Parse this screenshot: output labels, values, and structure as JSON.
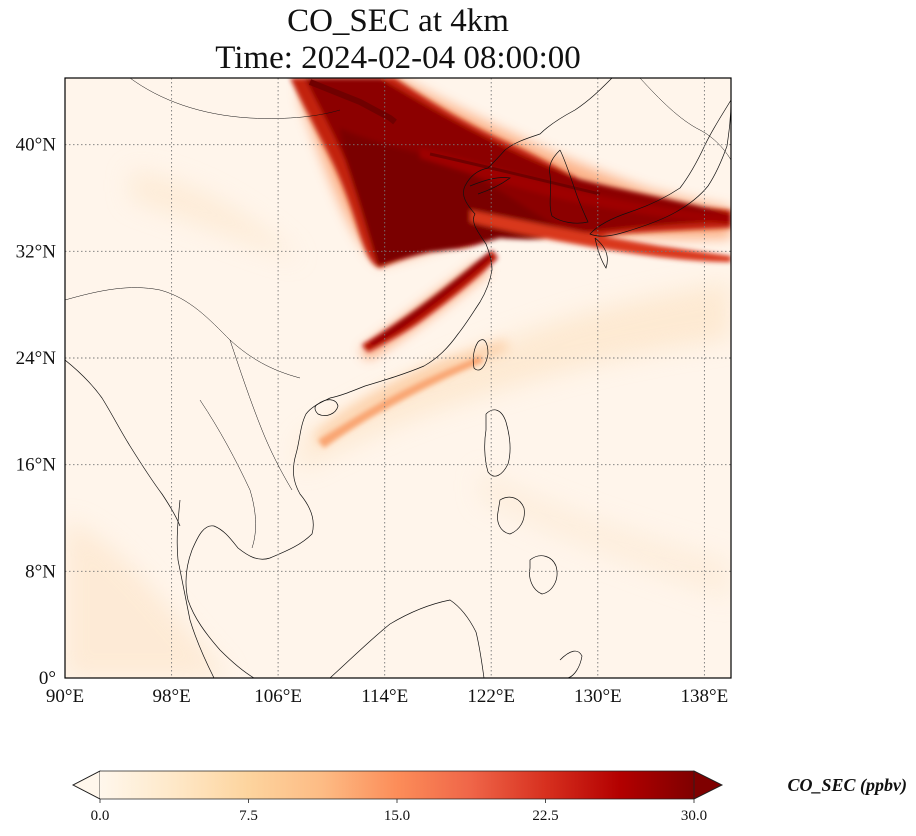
{
  "title_line1": "CO_SEC at 4km",
  "title_line2": "Time: 2024-02-04 08:00:00",
  "map": {
    "lon_range": [
      90,
      140
    ],
    "lat_range": [
      0,
      45
    ],
    "lon_ticks": [
      90,
      98,
      106,
      114,
      122,
      130,
      138
    ],
    "lat_ticks": [
      0,
      8,
      16,
      24,
      32,
      40
    ],
    "lon_tick_labels": [
      "90°E",
      "98°E",
      "106°E",
      "114°E",
      "122°E",
      "130°E",
      "138°E"
    ],
    "lat_tick_labels": [
      "0°",
      "8°N",
      "16°N",
      "24°N",
      "32°N",
      "40°N"
    ],
    "gridlines": "dotted",
    "background_color": "#fff5eb"
  },
  "colorbar": {
    "label": "CO_SEC (ppbv)",
    "min": 0,
    "max": 30,
    "ticks": [
      0,
      7.5,
      15,
      22.5,
      30
    ],
    "tick_labels": [
      "0.0",
      "7.5",
      "15.0",
      "22.5",
      "30.0"
    ],
    "extend": "both",
    "colormap": "OrRd",
    "colors": [
      "#fff7ec",
      "#fee8c8",
      "#fdd49e",
      "#fdbb84",
      "#fc8d59",
      "#ef6548",
      "#d7301f",
      "#b30000",
      "#7f0000"
    ]
  }
}
